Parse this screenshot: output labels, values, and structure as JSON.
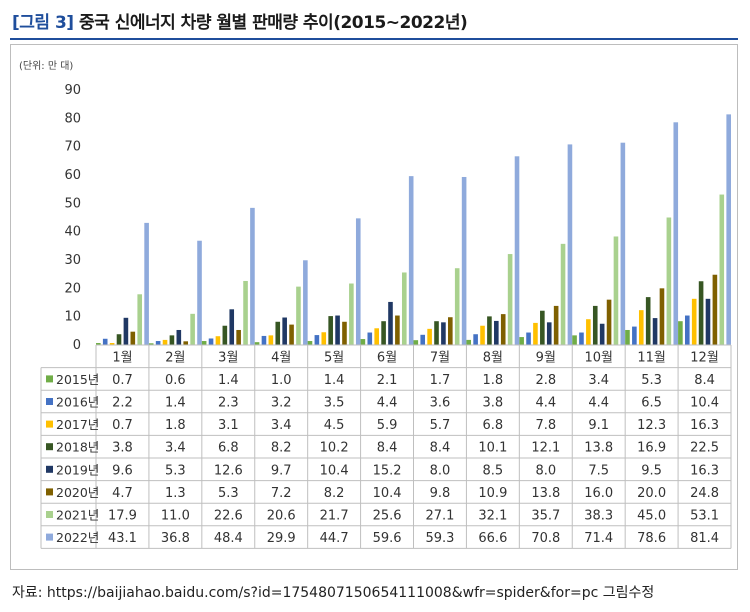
{
  "title": {
    "tag": "[그림 3]",
    "text": "중국 신에너지 차량 월별 판매량 추이(2015~2022년)"
  },
  "source": "자료: https://baijiahao.baidu.com/s?id=1754807150654111008&wfr=spider&for=pc 그림수정",
  "chart_data": {
    "type": "bar",
    "unit_label": "(단위: 만 대)",
    "categories": [
      "1월",
      "2월",
      "3월",
      "4월",
      "5월",
      "6월",
      "7월",
      "8월",
      "9월",
      "10월",
      "11월",
      "12월"
    ],
    "ylim": [
      0,
      90
    ],
    "yticks": [
      0,
      10,
      20,
      30,
      40,
      50,
      60,
      70,
      80,
      90
    ],
    "grid": false,
    "legend": "table-left",
    "series": [
      {
        "name": "2015년",
        "color": "#70ad47",
        "values": [
          0.7,
          0.6,
          1.4,
          1.0,
          1.4,
          2.1,
          1.7,
          1.8,
          2.8,
          3.4,
          5.3,
          8.4
        ]
      },
      {
        "name": "2016년",
        "color": "#4472c4",
        "values": [
          2.2,
          1.4,
          2.3,
          3.2,
          3.5,
          4.4,
          3.6,
          3.8,
          4.4,
          4.4,
          6.5,
          10.4
        ]
      },
      {
        "name": "2017년",
        "color": "#ffc000",
        "values": [
          0.7,
          1.8,
          3.1,
          3.4,
          4.5,
          5.9,
          5.7,
          6.8,
          7.8,
          9.1,
          12.3,
          16.3
        ]
      },
      {
        "name": "2018년",
        "color": "#375623",
        "values": [
          3.8,
          3.4,
          6.8,
          8.2,
          10.2,
          8.4,
          8.4,
          10.1,
          12.1,
          13.8,
          16.9,
          22.5
        ]
      },
      {
        "name": "2019년",
        "color": "#203864",
        "values": [
          9.6,
          5.3,
          12.6,
          9.7,
          10.4,
          15.2,
          8.0,
          8.5,
          8.0,
          7.5,
          9.5,
          16.3
        ]
      },
      {
        "name": "2020년",
        "color": "#7f6000",
        "values": [
          4.7,
          1.3,
          5.3,
          7.2,
          8.2,
          10.4,
          9.8,
          10.9,
          13.8,
          16.0,
          20.0,
          24.8
        ]
      },
      {
        "name": "2021년",
        "color": "#a9d18e",
        "values": [
          17.9,
          11.0,
          22.6,
          20.6,
          21.7,
          25.6,
          27.1,
          32.1,
          35.7,
          38.3,
          45.0,
          53.1
        ]
      },
      {
        "name": "2022년",
        "color": "#8faadc",
        "values": [
          43.1,
          36.8,
          48.4,
          29.9,
          44.7,
          59.6,
          59.3,
          66.6,
          70.8,
          71.4,
          78.6,
          81.4
        ]
      }
    ]
  }
}
